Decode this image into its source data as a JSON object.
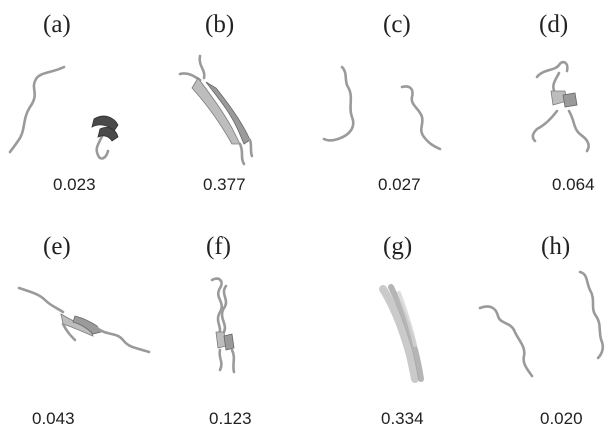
{
  "panels": [
    {
      "label": "(a)",
      "value": "0.023"
    },
    {
      "label": "(b)",
      "value": "0.377"
    },
    {
      "label": "(c)",
      "value": "0.027"
    },
    {
      "label": "(d)",
      "value": "0.064"
    },
    {
      "label": "(e)",
      "value": "0.043"
    },
    {
      "label": "(f)",
      "value": "0.123"
    },
    {
      "label": "(g)",
      "value": "0.334"
    },
    {
      "label": "(h)",
      "value": "0.020"
    }
  ]
}
